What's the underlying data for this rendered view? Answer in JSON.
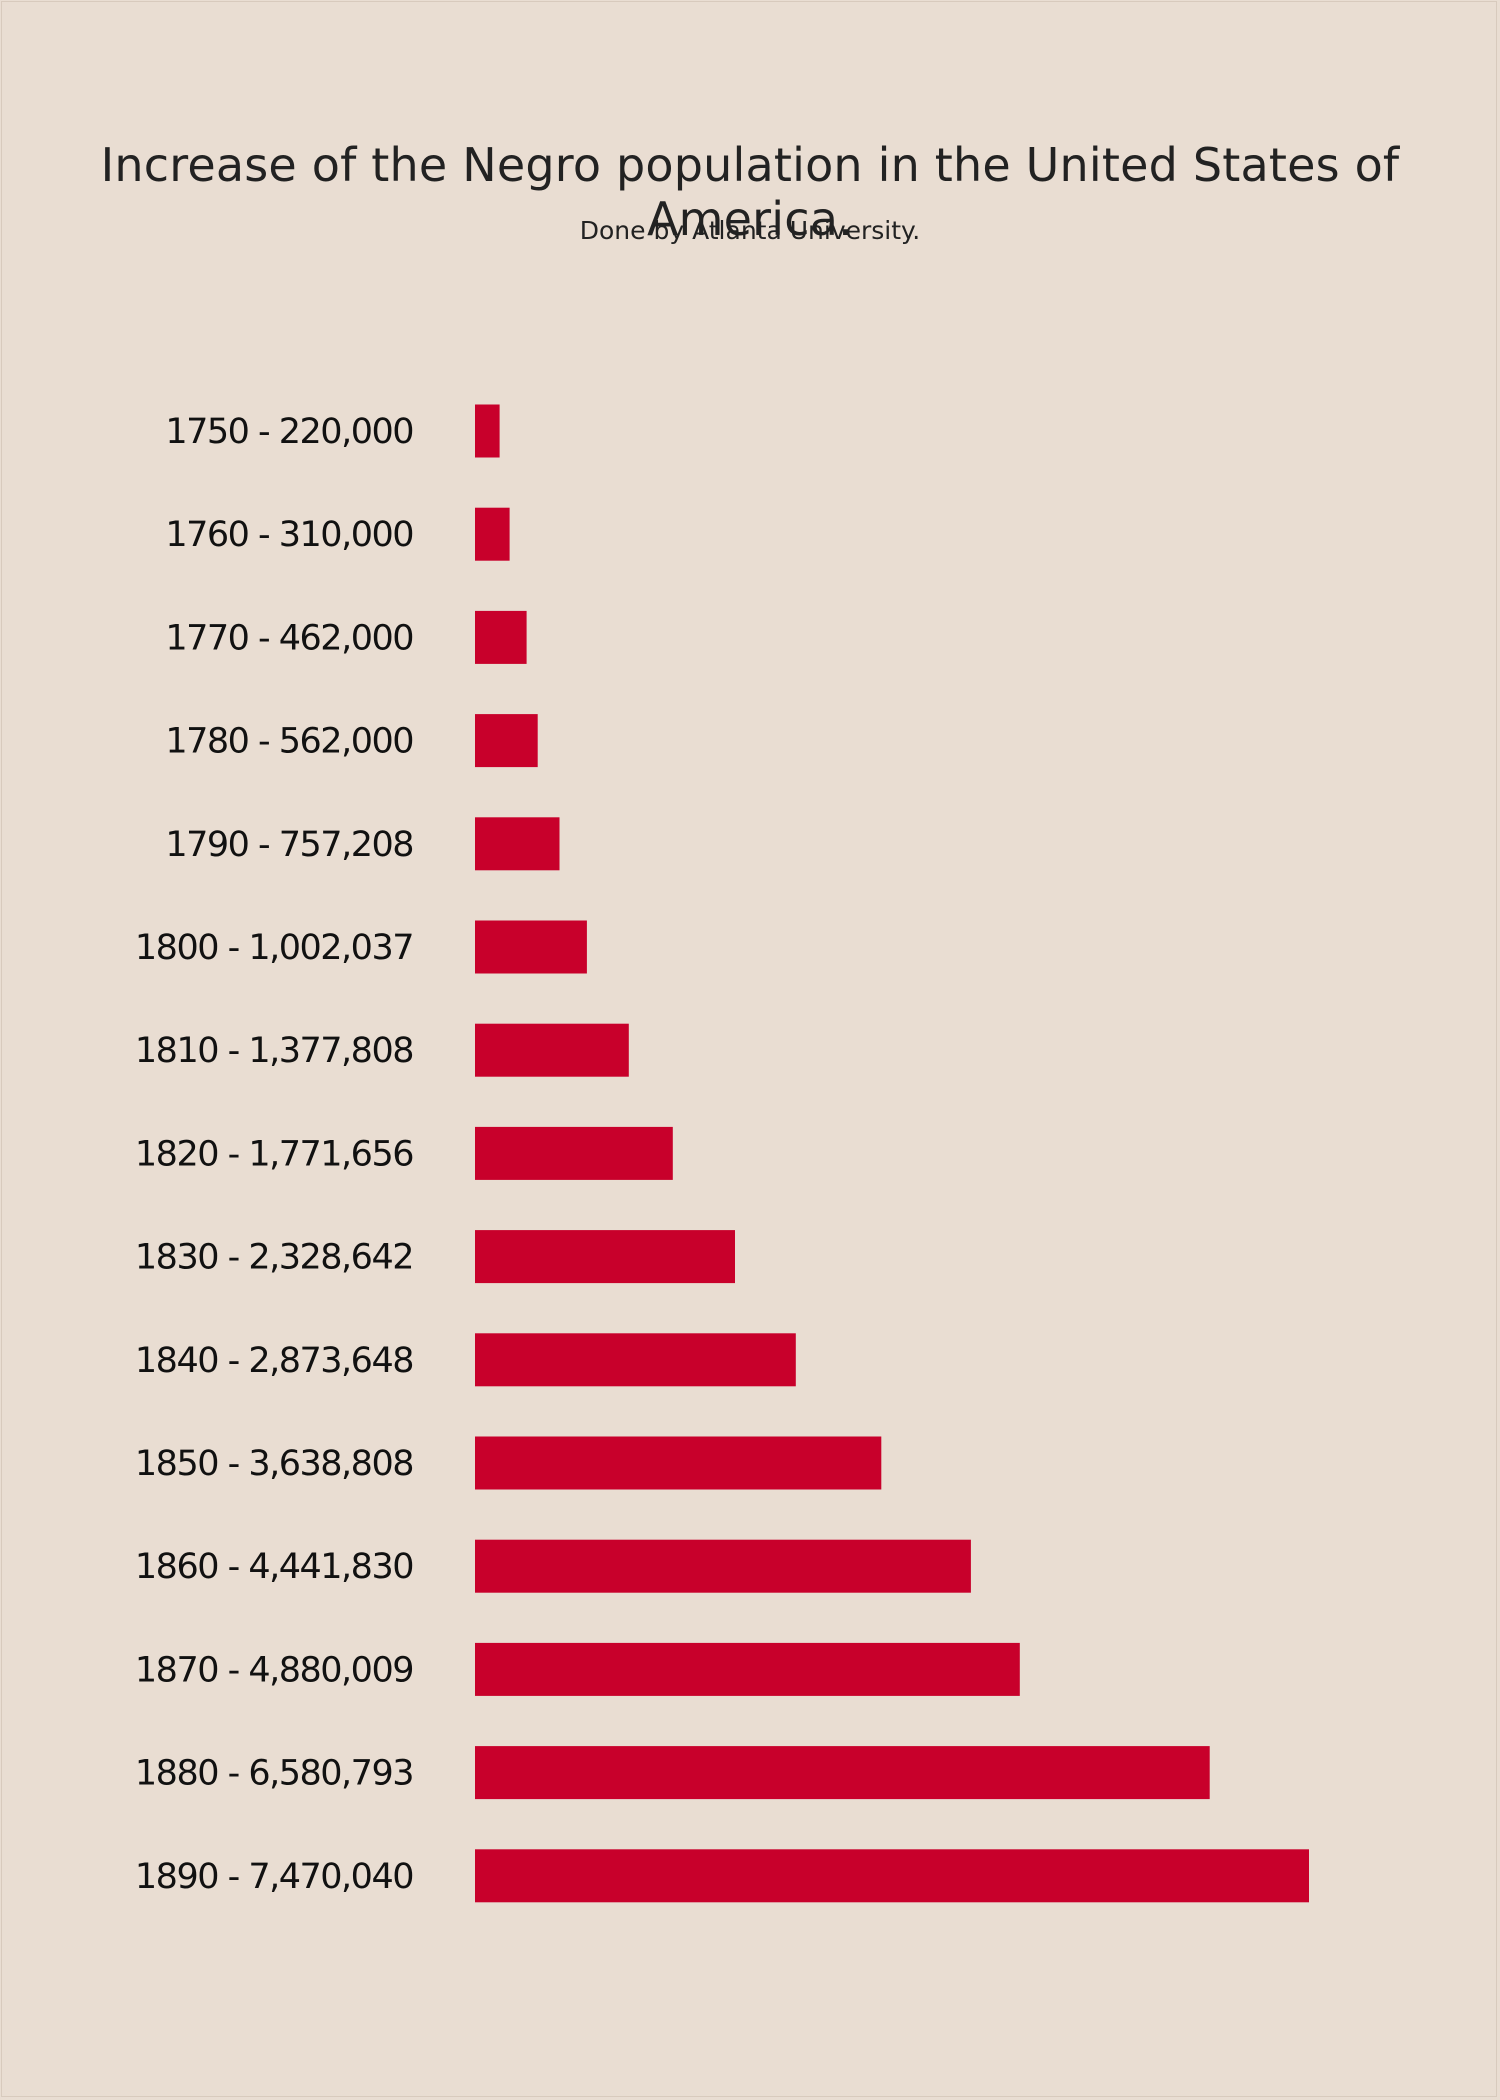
{
  "chart_data": {
    "type": "bar",
    "orientation": "horizontal",
    "title": "Increase of the Negro population in the United States of America.",
    "subtitle": "Done by Atlanta University.",
    "bar_color": "#c8002b",
    "background_color": "#e9ddd2",
    "grid": false,
    "legend": "none",
    "categories": [
      "1750",
      "1760",
      "1770",
      "1780",
      "1790",
      "1800",
      "1810",
      "1820",
      "1830",
      "1840",
      "1850",
      "1860",
      "1870",
      "1880",
      "1890"
    ],
    "values": [
      220000,
      310000,
      462000,
      562000,
      757208,
      1002037,
      1377808,
      1771656,
      2328642,
      2873648,
      3638808,
      4441830,
      4880009,
      6580793,
      7470040
    ],
    "labels": [
      "1750 - 220,000",
      "1760 - 310,000",
      "1770 - 462,000",
      "1780 - 562,000",
      "1790 - 757,208",
      "1800 - 1,002,037",
      "1810 - 1,377,808",
      "1820 - 1,771,656",
      "1830 - 2,328,642",
      "1840 - 2,873,648",
      "1850 - 3,638,808",
      "1860 - 4,441,830",
      "1870 - 4,880,009",
      "1880 - 6,580,793",
      "1890 - 7,470,040"
    ]
  }
}
